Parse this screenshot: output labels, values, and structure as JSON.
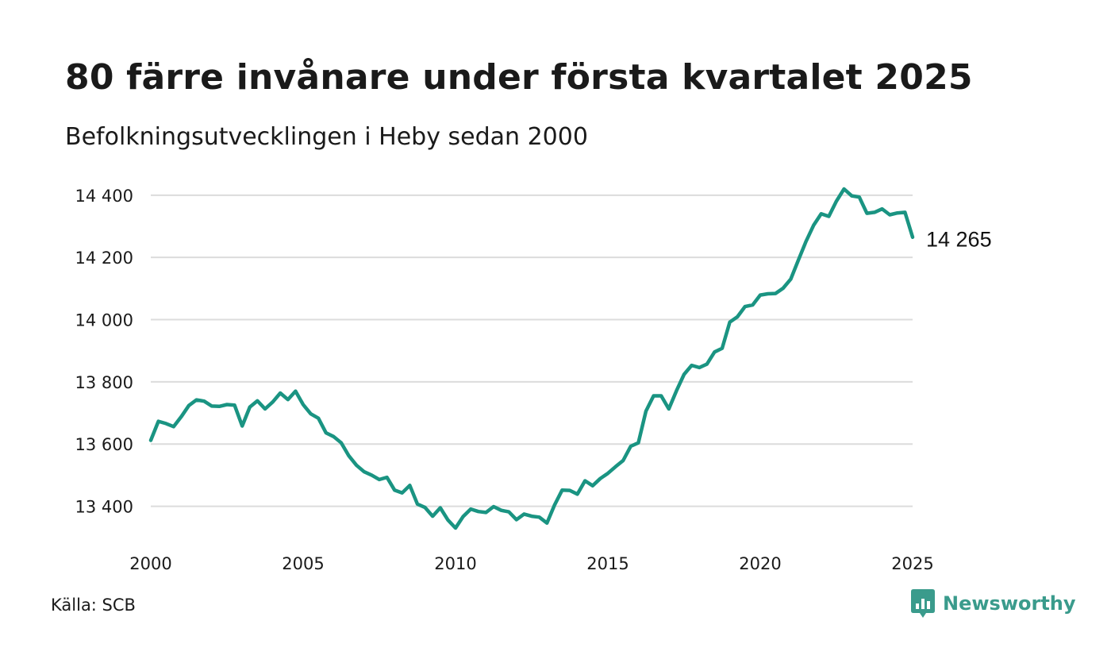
{
  "title": "80 färre invånare under första kvartalet 2025",
  "subtitle": "Befolkningsutvecklingen i Heby sedan 2000",
  "source": "Källa: SCB",
  "brand": {
    "name": "Newsworthy",
    "icon": "newsworthy-logo-icon",
    "color": "#3a9b8c"
  },
  "chart_data": {
    "type": "line",
    "x_start": "2000",
    "x_frequency": "quarterly",
    "xlim": [
      2000,
      2025
    ],
    "ylim": [
      13330,
      14420
    ],
    "xticks": [
      2000,
      2005,
      2010,
      2015,
      2020,
      2025
    ],
    "xtick_labels": [
      "2000",
      "2005",
      "2010",
      "2015",
      "2020",
      "2025"
    ],
    "yticks": [
      13400,
      13600,
      13800,
      14000,
      14200,
      14400
    ],
    "ytick_labels": [
      "13 400",
      "13 600",
      "13 800",
      "14 000",
      "14 200",
      "14 400"
    ],
    "grid": "horizontal",
    "line_color": "#1a9482",
    "last_value_label": "14 265",
    "values": [
      13612,
      13673,
      13666,
      13656,
      13688,
      13724,
      13742,
      13738,
      13722,
      13721,
      13727,
      13725,
      13658,
      13719,
      13739,
      13713,
      13735,
      13764,
      13743,
      13770,
      13727,
      13697,
      13683,
      13636,
      13624,
      13604,
      13562,
      13532,
      13511,
      13500,
      13486,
      13493,
      13452,
      13443,
      13467,
      13407,
      13396,
      13368,
      13395,
      13356,
      13330,
      13367,
      13391,
      13383,
      13380,
      13399,
      13387,
      13382,
      13357,
      13375,
      13368,
      13365,
      13346,
      13404,
      13452,
      13451,
      13439,
      13482,
      13466,
      13489,
      13506,
      13527,
      13547,
      13593,
      13604,
      13706,
      13755,
      13755,
      13713,
      13771,
      13824,
      13853,
      13846,
      13857,
      13896,
      13908,
      13992,
      14009,
      14042,
      14047,
      14079,
      14083,
      14084,
      14101,
      14130,
      14191,
      14251,
      14303,
      14340,
      14332,
      14381,
      14420,
      14398,
      14394,
      14342,
      14345,
      14356,
      14337,
      14343,
      14345,
      14265
    ]
  }
}
